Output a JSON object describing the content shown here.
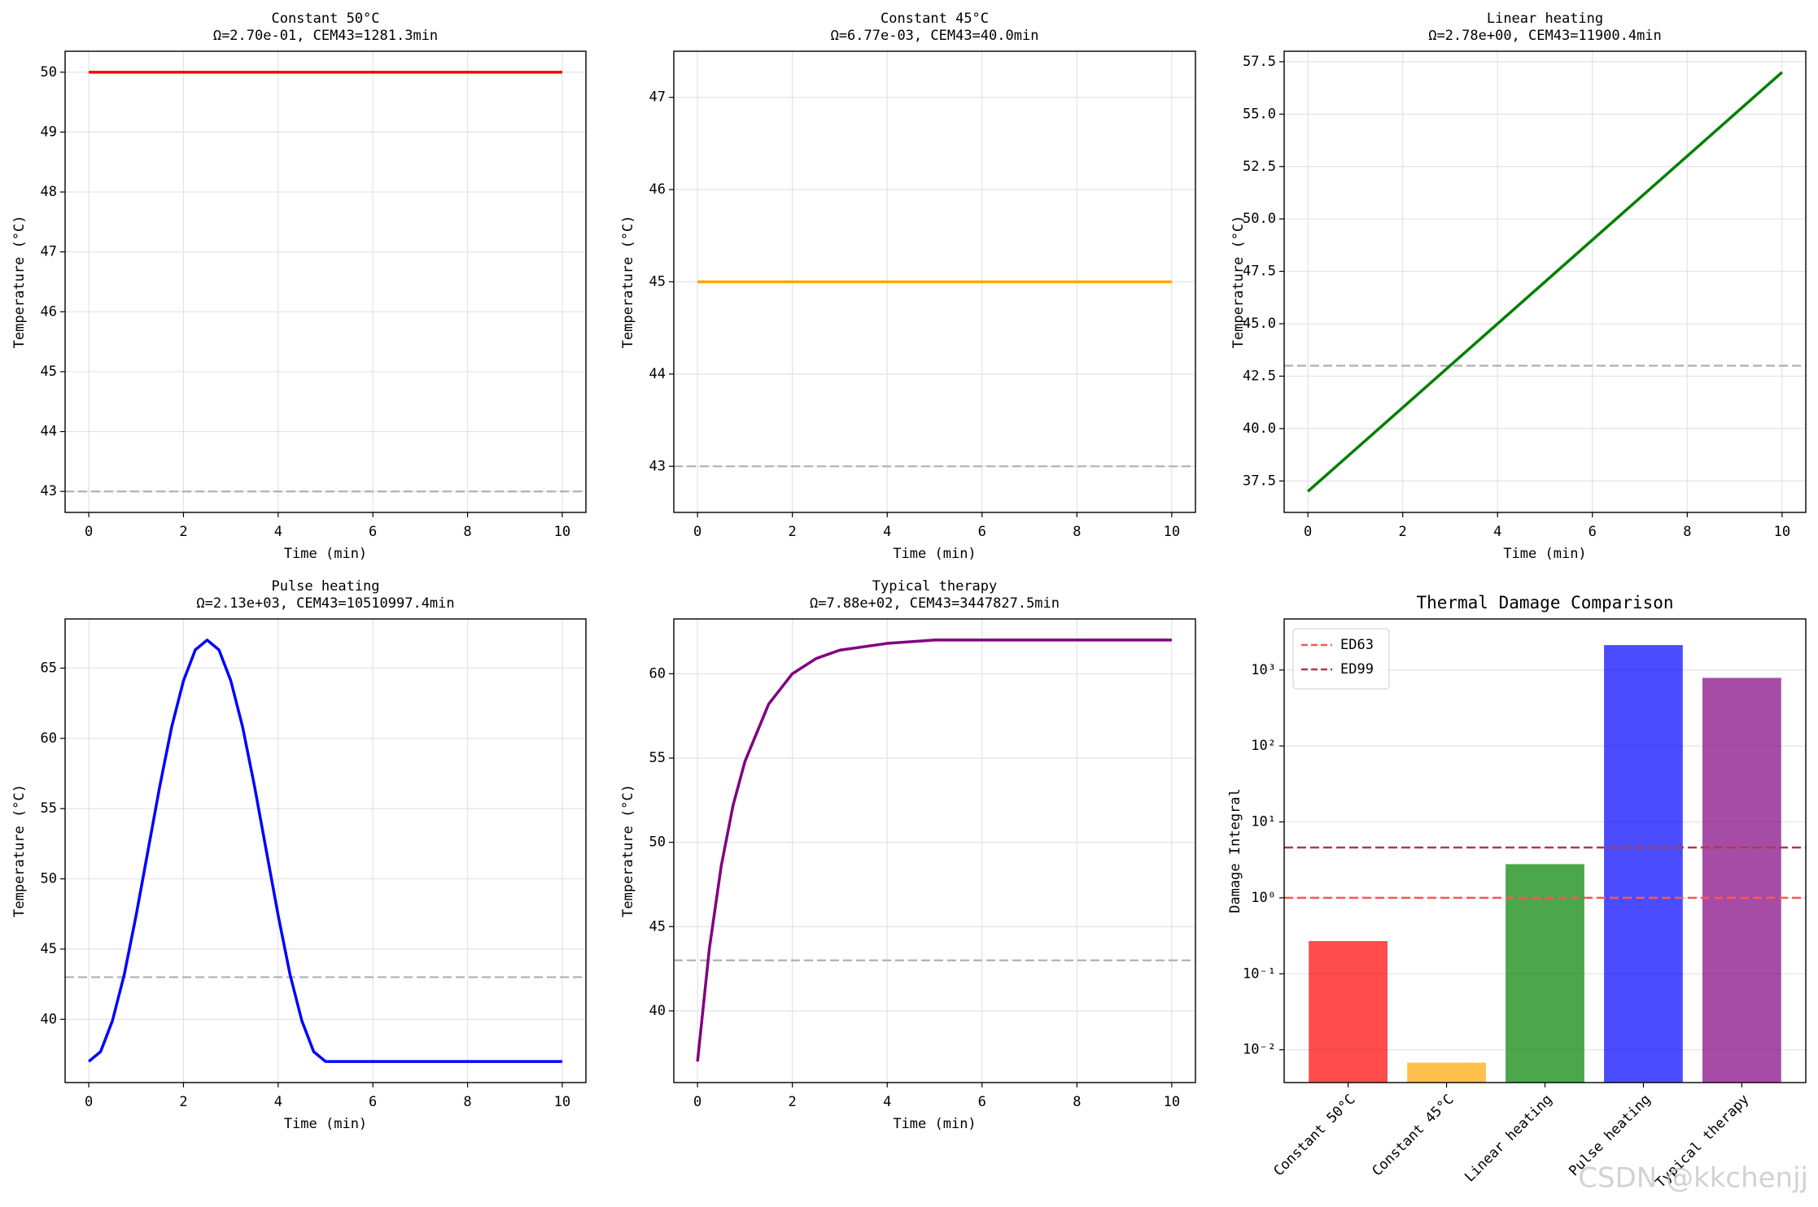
{
  "watermark": "CSDN @kkchenjj",
  "chart_data": [
    {
      "type": "line",
      "title": "Constant 50°C",
      "subtitle": "Ω=2.70e-01, CEM43=1281.3min",
      "xlabel": "Time (min)",
      "ylabel": "Temperature (°C)",
      "x": [
        0,
        10
      ],
      "values": [
        50,
        50
      ],
      "color": "#ff0000",
      "xlim": [
        -0.5,
        10.5
      ],
      "xticks": [
        0,
        2,
        4,
        6,
        8,
        10
      ],
      "ylim": [
        42.65,
        50.35
      ],
      "yticks": [
        43,
        44,
        45,
        46,
        47,
        48,
        49,
        50
      ],
      "hline": 43,
      "hline_color": "#b0b0b0",
      "grid": true
    },
    {
      "type": "line",
      "title": "Constant 45°C",
      "subtitle": "Ω=6.77e-03, CEM43=40.0min",
      "xlabel": "Time (min)",
      "ylabel": "Temperature (°C)",
      "x": [
        0,
        10
      ],
      "values": [
        45,
        45
      ],
      "color": "#ffa500",
      "xlim": [
        -0.5,
        10.5
      ],
      "xticks": [
        0,
        2,
        4,
        6,
        8,
        10
      ],
      "ylim": [
        42.5,
        47.5
      ],
      "yticks": [
        43,
        44,
        45,
        46,
        47
      ],
      "hline": 43,
      "hline_color": "#b0b0b0",
      "grid": true
    },
    {
      "type": "line",
      "title": "Linear heating",
      "subtitle": "Ω=2.78e+00, CEM43=11900.4min",
      "xlabel": "Time (min)",
      "ylabel": "Temperature (°C)",
      "x": [
        0,
        10
      ],
      "values": [
        37,
        57
      ],
      "color": "#008000",
      "xlim": [
        -0.5,
        10.5
      ],
      "xticks": [
        0,
        2,
        4,
        6,
        8,
        10
      ],
      "ylim": [
        36,
        58
      ],
      "yticks": [
        37.5,
        {
          "value": 40,
          "label": "40.0"
        },
        42.5,
        {
          "value": 45,
          "label": "45.0"
        },
        47.5,
        {
          "value": 50,
          "label": "50.0"
        },
        52.5,
        {
          "value": 55,
          "label": "55.0"
        },
        57.5
      ],
      "hline": 43,
      "hline_color": "#b0b0b0",
      "grid": true
    },
    {
      "type": "line",
      "title": "Pulse heating",
      "subtitle": "Ω=2.13e+03, CEM43=10510997.4min",
      "xlabel": "Time (min)",
      "ylabel": "Temperature (°C)",
      "x": [
        0,
        0.25,
        0.5,
        0.75,
        1,
        1.25,
        1.5,
        1.75,
        2,
        2.25,
        2.5,
        2.75,
        3,
        3.25,
        3.5,
        3.75,
        4,
        4.25,
        4.5,
        4.75,
        5,
        10
      ],
      "values": [
        37,
        37.7,
        39.9,
        43.2,
        47.4,
        52,
        56.6,
        60.8,
        64.1,
        66.3,
        67,
        66.3,
        64.1,
        60.8,
        56.6,
        52,
        47.4,
        43.2,
        39.9,
        37.7,
        37,
        37
      ],
      "color": "#0000ff",
      "xlim": [
        -0.5,
        10.5
      ],
      "xticks": [
        0,
        2,
        4,
        6,
        8,
        10
      ],
      "ylim": [
        35.5,
        68.5
      ],
      "yticks": [
        40,
        45,
        50,
        55,
        60,
        65
      ],
      "hline": 43,
      "hline_color": "#b0b0b0",
      "grid": true
    },
    {
      "type": "line",
      "title": "Typical therapy",
      "subtitle": "Ω=7.88e+02, CEM43=3447827.5min",
      "xlabel": "Time (min)",
      "ylabel": "Temperature (°C)",
      "x": [
        0,
        0.25,
        0.5,
        0.75,
        1,
        1.5,
        2,
        2.5,
        3,
        4,
        5,
        6,
        8,
        10
      ],
      "values": [
        37,
        43.7,
        48.6,
        52.2,
        54.8,
        58.2,
        60,
        60.9,
        61.4,
        61.8,
        62,
        62,
        62,
        62
      ],
      "color": "#800080",
      "xlim": [
        -0.5,
        10.5
      ],
      "xticks": [
        0,
        2,
        4,
        6,
        8,
        10
      ],
      "ylim": [
        35.75,
        63.25
      ],
      "yticks": [
        40,
        45,
        50,
        55,
        60
      ],
      "hline": 43,
      "hline_color": "#b0b0b0",
      "grid": true
    },
    {
      "type": "bar",
      "title": "Thermal Damage Comparison",
      "ylabel": "Damage Integral",
      "log_scale": true,
      "categories": [
        "Constant 50°C",
        "Constant 45°C",
        "Linear heating",
        "Pulse heating",
        "Typical therapy"
      ],
      "values": [
        0.27,
        0.00677,
        2.78,
        2130,
        788
      ],
      "colors": [
        "#ff0000",
        "#ffa500",
        "#008000",
        "#0000ff",
        "#800080"
      ],
      "bar_alpha": 0.7,
      "ylim": [
        0.0037,
        4700
      ],
      "yticks": [
        {
          "value": 0.01,
          "label": "10⁻²"
        },
        {
          "value": 0.1,
          "label": "10⁻¹"
        },
        {
          "value": 1,
          "label": "10⁰"
        },
        {
          "value": 10,
          "label": "10¹"
        },
        {
          "value": 100,
          "label": "10²"
        },
        {
          "value": 1000,
          "label": "10³"
        }
      ],
      "hlines": [
        {
          "name": "ED63",
          "value": 1,
          "color": "#ff5555"
        },
        {
          "name": "ED99",
          "value": 4.6,
          "color": "#b03a48"
        }
      ],
      "legend": "upper left",
      "grid": true
    }
  ]
}
